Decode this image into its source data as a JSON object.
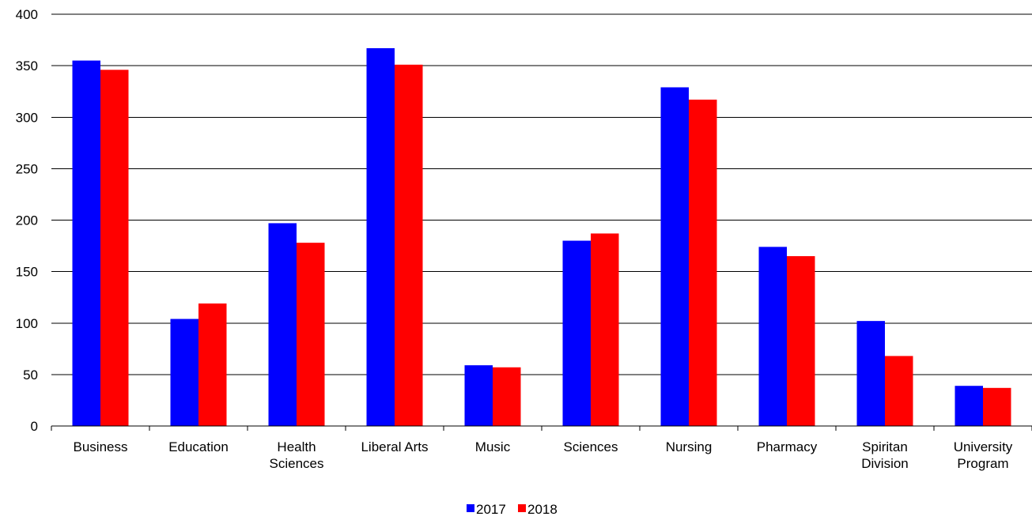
{
  "chart_data": {
    "type": "bar",
    "categories": [
      [
        "Business"
      ],
      [
        "Education"
      ],
      [
        "Health",
        "Sciences"
      ],
      [
        "Liberal Arts"
      ],
      [
        "Music"
      ],
      [
        "Sciences"
      ],
      [
        "Nursing"
      ],
      [
        "Pharmacy"
      ],
      [
        "Spiritan",
        "Division"
      ],
      [
        "University",
        "Program"
      ]
    ],
    "series": [
      {
        "name": "2017",
        "color": "#0000FF",
        "values": [
          355,
          104,
          197,
          367,
          59,
          180,
          329,
          174,
          102,
          39
        ]
      },
      {
        "name": "2018",
        "color": "#FF0000",
        "values": [
          346,
          119,
          178,
          351,
          57,
          187,
          317,
          165,
          68,
          37
        ]
      }
    ],
    "ylim": [
      0,
      400
    ],
    "yticks": [
      0,
      50,
      100,
      150,
      200,
      250,
      300,
      350,
      400
    ],
    "grid": true,
    "legend_position": "bottom-center"
  }
}
